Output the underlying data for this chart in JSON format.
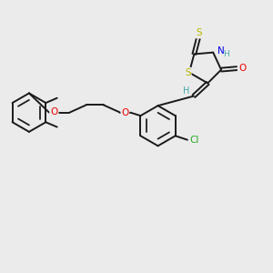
{
  "background_color": "#ebebeb",
  "bond_color": "#1a1a1a",
  "atom_colors": {
    "S": "#b8b800",
    "N": "#0000ee",
    "O": "#ee0000",
    "Cl": "#22aa22",
    "H": "#44aaaa"
  },
  "figsize": [
    3.0,
    3.0
  ],
  "dpi": 100,
  "lw": 1.4,
  "fontsize": 7.5
}
